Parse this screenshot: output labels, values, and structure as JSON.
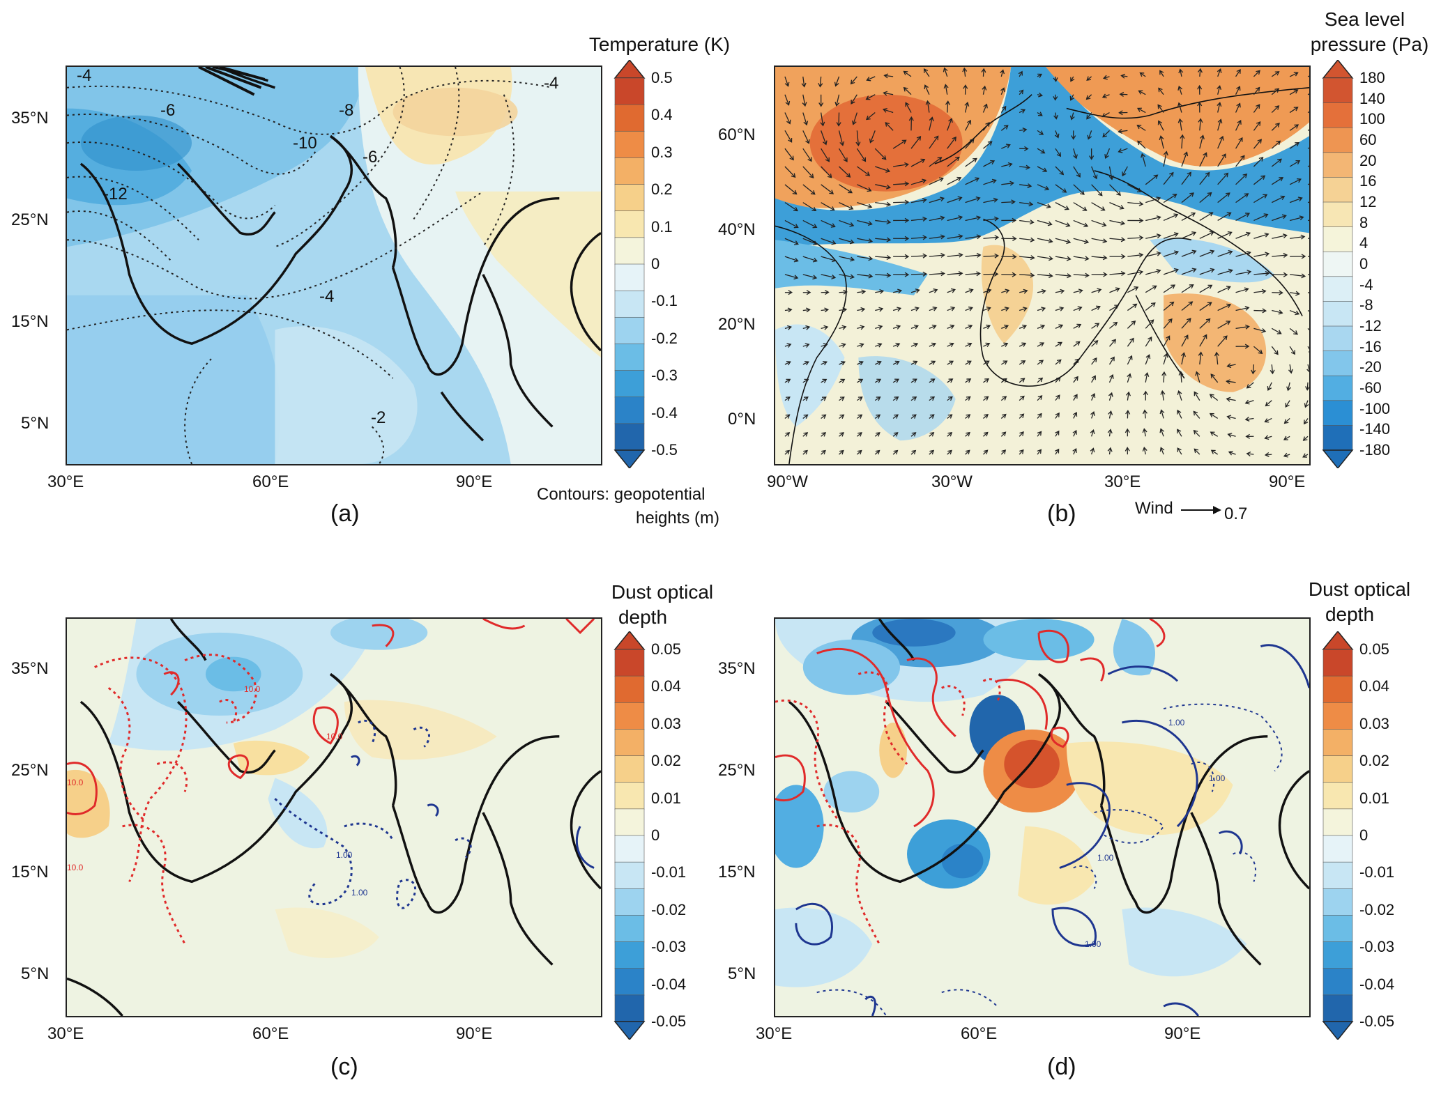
{
  "panels": {
    "a": {
      "label": "(a)",
      "lat_ticks": [
        "35°N",
        "25°N",
        "15°N",
        "5°N"
      ],
      "lon_ticks": [
        "30°E",
        "60°E",
        "90°E"
      ],
      "colorbar_title": "Temperature (K)",
      "colorbar_labels": [
        "0.5",
        "0.4",
        "0.3",
        "0.2",
        "0.1",
        "0",
        "-0.1",
        "-0.2",
        "-0.3",
        "-0.4",
        "-0.5"
      ],
      "contour_labels": [
        "-4",
        "-6",
        "-8",
        "-10",
        "-6",
        "-4",
        "-12",
        "-4",
        "-2"
      ],
      "note_line1": "Contours:  geopotential",
      "note_line2": "heights (m)"
    },
    "b": {
      "label": "(b)",
      "lat_ticks": [
        "60°N",
        "40°N",
        "20°N",
        "0°N"
      ],
      "lon_ticks": [
        "90°W",
        "30°W",
        "30°E",
        "90°E"
      ],
      "colorbar_title_line1": "Sea level",
      "colorbar_title_line2": "pressure (Pa)",
      "colorbar_labels": [
        "180",
        "140",
        "100",
        "60",
        "20",
        "16",
        "12",
        "8",
        "4",
        "0",
        "-4",
        "-8",
        "-12",
        "-16",
        "-20",
        "-60",
        "-100",
        "-140",
        "-180"
      ],
      "wind_label": "Wind",
      "wind_value": "0.7"
    },
    "c": {
      "label": "(c)",
      "lat_ticks": [
        "35°N",
        "25°N",
        "15°N",
        "5°N"
      ],
      "lon_ticks": [
        "30°E",
        "60°E",
        "90°E"
      ],
      "colorbar_title_line1": "Dust optical",
      "colorbar_title_line2": "depth",
      "colorbar_labels": [
        "0.05",
        "0.04",
        "0.03",
        "0.02",
        "0.01",
        "0",
        "-0.01",
        "-0.02",
        "-0.03",
        "-0.04",
        "-0.05"
      ],
      "contour_labels": [
        "10.0",
        "10.0",
        "10.0",
        "10.0",
        "1.00",
        "1.00"
      ]
    },
    "d": {
      "label": "(d)",
      "lat_ticks": [
        "35°N",
        "25°N",
        "15°N",
        "5°N"
      ],
      "lon_ticks": [
        "30°E",
        "60°E",
        "90°E"
      ],
      "colorbar_title_line1": "Dust optical",
      "colorbar_title_line2": "depth",
      "colorbar_labels": [
        "0.05",
        "0.04",
        "0.03",
        "0.02",
        "0.01",
        "0",
        "-0.01",
        "-0.02",
        "-0.03",
        "-0.04",
        "-0.05"
      ],
      "contour_labels": [
        "1.00",
        "1.00",
        "1.00",
        "1.00"
      ]
    }
  },
  "colors": {
    "diverging_scale": [
      "#2166ac",
      "#2b83c8",
      "#3d9fd8",
      "#6bbde6",
      "#9dd3ef",
      "#c8e6f4",
      "#e6f3f8",
      "#f4f4dc",
      "#f8e7b0",
      "#f6d08a",
      "#f3b066",
      "#ee8c46",
      "#e06a30",
      "#c9472a"
    ],
    "pressure_scale": [
      "#1f6fb8",
      "#2b8fd4",
      "#52aee2",
      "#82c6eb",
      "#a9d7f0",
      "#c8e6f4",
      "#dcefF6",
      "#eef6f4",
      "#f5f4da",
      "#f7e6b4",
      "#f5d295",
      "#f3b674",
      "#ee9552",
      "#e4703a",
      "#d25530"
    ],
    "positive_contour": "#e02a2a",
    "negative_contour": "#1e3690"
  }
}
